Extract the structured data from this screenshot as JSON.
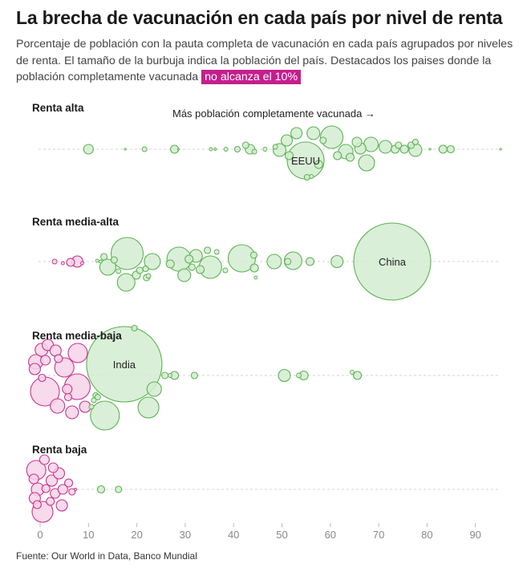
{
  "title": "La brecha de vacunación en cada país por nivel de renta",
  "subtitle": {
    "text": "Porcentaje de población con la pauta completa de vacunación en cada país agrupados por niveles de renta. El tamaño de la burbuja indica la población del país. Destacados los paises donde la población completamente vacunada",
    "highlight": "no alcanza el 10%"
  },
  "source": "Fuente: Our World in Data, Banco Mundial",
  "colors": {
    "green_fill": "#d4ecd1",
    "green_stroke": "#5cb352",
    "pink_fill": "#f6d3e8",
    "pink_stroke": "#c8348e",
    "baseline": "#d6d6d6"
  },
  "chart_data": {
    "type": "scatter",
    "subtype": "beeswarm-bubble",
    "xlabel": "",
    "ylabel": "",
    "xlim": [
      0,
      95
    ],
    "xticks": [
      0,
      10,
      20,
      30,
      40,
      50,
      60,
      70,
      80,
      90
    ],
    "threshold": 10,
    "annotation": "Más población completamente vacunada →",
    "groups": [
      {
        "name": "Renta alta",
        "points": [
          {
            "x": 10,
            "d": 0,
            "r": 6
          },
          {
            "x": 17.6,
            "d": 0,
            "r": 1.2
          },
          {
            "x": 21.6,
            "d": 0,
            "r": 3
          },
          {
            "x": 27.8,
            "d": 0,
            "r": 5
          },
          {
            "x": 28.6,
            "d": 0,
            "r": 1.2
          },
          {
            "x": 35.3,
            "d": 0,
            "r": 2
          },
          {
            "x": 36.2,
            "d": 0,
            "r": 1.5
          },
          {
            "x": 38.4,
            "d": 0,
            "r": 2.5
          },
          {
            "x": 40.8,
            "d": 0,
            "r": 3.5
          },
          {
            "x": 42.5,
            "d": -5,
            "r": 4
          },
          {
            "x": 43.4,
            "d": 0,
            "r": 6
          },
          {
            "x": 44.3,
            "d": 3,
            "r": 3
          },
          {
            "x": 46.5,
            "d": 0,
            "r": 2.5
          },
          {
            "x": 48.6,
            "d": -3,
            "r": 3
          },
          {
            "x": 49.5,
            "d": 1,
            "r": 8
          },
          {
            "x": 51,
            "d": -11,
            "r": 7
          },
          {
            "x": 51.5,
            "d": 8,
            "r": 5
          },
          {
            "x": 53,
            "d": -20,
            "r": 7
          },
          {
            "x": 54.9,
            "d": 14,
            "r": 23,
            "label": "EEUU"
          },
          {
            "x": 55.2,
            "d": 35,
            "r": 3.5
          },
          {
            "x": 56.1,
            "d": 34,
            "r": 2.5
          },
          {
            "x": 57.6,
            "d": 19,
            "r": 5
          },
          {
            "x": 56.5,
            "d": -20,
            "r": 8
          },
          {
            "x": 58.5,
            "d": -11,
            "r": 4
          },
          {
            "x": 60.3,
            "d": -15,
            "r": 14
          },
          {
            "x": 61.5,
            "d": 8,
            "r": 5
          },
          {
            "x": 63.2,
            "d": 3,
            "r": 9
          },
          {
            "x": 64.1,
            "d": 10,
            "r": 5
          },
          {
            "x": 65.5,
            "d": -9,
            "r": 6
          },
          {
            "x": 66.2,
            "d": -1,
            "r": 7
          },
          {
            "x": 67.5,
            "d": 17,
            "r": 10
          },
          {
            "x": 68.4,
            "d": -6,
            "r": 9
          },
          {
            "x": 71.4,
            "d": -3,
            "r": 8
          },
          {
            "x": 73.4,
            "d": 0,
            "r": 5
          },
          {
            "x": 74.1,
            "d": -5,
            "r": 4
          },
          {
            "x": 75.3,
            "d": 0,
            "r": 5
          },
          {
            "x": 76.7,
            "d": -5,
            "r": 4
          },
          {
            "x": 77.6,
            "d": 1,
            "r": 8
          },
          {
            "x": 77.6,
            "d": -9,
            "r": 3.5
          },
          {
            "x": 80.6,
            "d": 0,
            "r": 1.2
          },
          {
            "x": 83.3,
            "d": 0,
            "r": 5
          },
          {
            "x": 84.9,
            "d": 0,
            "r": 4.5
          },
          {
            "x": 95.2,
            "d": 0,
            "r": 1.2
          }
        ]
      },
      {
        "name": "Renta media-alta",
        "points": [
          {
            "x": 3,
            "d": 0,
            "r": 3
          },
          {
            "x": 4.7,
            "d": 2,
            "r": 2
          },
          {
            "x": 6.3,
            "d": 1,
            "r": 5
          },
          {
            "x": 7.7,
            "d": 0,
            "r": 7
          },
          {
            "x": 8.7,
            "d": 2,
            "r": 2
          },
          {
            "x": 11.8,
            "d": -1,
            "r": 2
          },
          {
            "x": 12.5,
            "d": 0,
            "r": 2
          },
          {
            "x": 13.2,
            "d": -6,
            "r": 4
          },
          {
            "x": 14,
            "d": 7,
            "r": 10
          },
          {
            "x": 15.3,
            "d": -2,
            "r": 4
          },
          {
            "x": 16.2,
            "d": 12,
            "r": 3
          },
          {
            "x": 18,
            "d": -10,
            "r": 20
          },
          {
            "x": 17.8,
            "d": 26,
            "r": 11
          },
          {
            "x": 19.9,
            "d": 17,
            "r": 5
          },
          {
            "x": 20.6,
            "d": 11,
            "r": 4
          },
          {
            "x": 21.8,
            "d": 9,
            "r": 3.5
          },
          {
            "x": 22,
            "d": 20,
            "r": 4
          },
          {
            "x": 22.4,
            "d": 18,
            "r": 3
          },
          {
            "x": 23.2,
            "d": 0,
            "r": 10
          },
          {
            "x": 26.9,
            "d": 3,
            "r": 5
          },
          {
            "x": 28.7,
            "d": -3,
            "r": 15
          },
          {
            "x": 29.8,
            "d": 17,
            "r": 8
          },
          {
            "x": 30.8,
            "d": -3,
            "r": 5
          },
          {
            "x": 31.4,
            "d": 7,
            "r": 4
          },
          {
            "x": 32.2,
            "d": -7,
            "r": 8
          },
          {
            "x": 33.1,
            "d": 10,
            "r": 5
          },
          {
            "x": 34.6,
            "d": -14,
            "r": 4
          },
          {
            "x": 35.2,
            "d": 7,
            "r": 14
          },
          {
            "x": 36.5,
            "d": -12,
            "r": 3
          },
          {
            "x": 38.3,
            "d": 11,
            "r": 3
          },
          {
            "x": 41.7,
            "d": -4,
            "r": 17
          },
          {
            "x": 44.3,
            "d": 8,
            "r": 5
          },
          {
            "x": 44.2,
            "d": -8,
            "r": 4
          },
          {
            "x": 44.6,
            "d": 20,
            "r": 2
          },
          {
            "x": 48.4,
            "d": 0,
            "r": 9
          },
          {
            "x": 51.2,
            "d": 0,
            "r": 4
          },
          {
            "x": 52.3,
            "d": -1,
            "r": 11
          },
          {
            "x": 55.8,
            "d": 0,
            "r": 5
          },
          {
            "x": 61.4,
            "d": 0,
            "r": 7.5
          },
          {
            "x": 72.8,
            "d": 0,
            "r": 48,
            "label": "China"
          }
        ]
      },
      {
        "name": "Renta media-baja",
        "points": [
          {
            "x": -1.1,
            "d": -8,
            "r": 7
          },
          {
            "x": -0.9,
            "d": -17,
            "r": 9
          },
          {
            "x": 0.3,
            "d": -32,
            "r": 8
          },
          {
            "x": 0.4,
            "d": 3,
            "r": 4.5
          },
          {
            "x": 1,
            "d": 20,
            "r": 18
          },
          {
            "x": 1.1,
            "d": -19,
            "r": 6
          },
          {
            "x": 1.6,
            "d": -38,
            "r": 7
          },
          {
            "x": 3.2,
            "d": -31,
            "r": 7
          },
          {
            "x": 3.6,
            "d": 38,
            "r": 9
          },
          {
            "x": 3.8,
            "d": -21,
            "r": 5
          },
          {
            "x": 5,
            "d": -10,
            "r": 12
          },
          {
            "x": 5.6,
            "d": 17,
            "r": 6
          },
          {
            "x": 5.8,
            "d": 27,
            "r": 4.5
          },
          {
            "x": 6.6,
            "d": 46,
            "r": 8
          },
          {
            "x": 7.8,
            "d": -28,
            "r": 12
          },
          {
            "x": 7.7,
            "d": 14,
            "r": 16
          },
          {
            "x": 9.3,
            "d": 39,
            "r": 7
          },
          {
            "x": 10.6,
            "d": 39,
            "r": 3
          },
          {
            "x": 11.1,
            "d": 31,
            "r": 3
          },
          {
            "x": 11.5,
            "d": 25,
            "r": 3.5
          },
          {
            "x": 11.9,
            "d": 27,
            "r": 3.5
          },
          {
            "x": 13.4,
            "d": 50,
            "r": 18
          },
          {
            "x": 17.4,
            "d": -14,
            "r": 47,
            "label": "India"
          },
          {
            "x": 19.5,
            "d": -59,
            "r": 3.5
          },
          {
            "x": 22.4,
            "d": 40,
            "r": 13
          },
          {
            "x": 23.6,
            "d": 17,
            "r": 9
          },
          {
            "x": 25.8,
            "d": 0,
            "r": 4
          },
          {
            "x": 26.9,
            "d": 0,
            "r": 2.5
          },
          {
            "x": 27.8,
            "d": 0,
            "r": 5
          },
          {
            "x": 31.9,
            "d": 0,
            "r": 4
          },
          {
            "x": 50.5,
            "d": 0,
            "r": 7.5
          },
          {
            "x": 53.5,
            "d": 0,
            "r": 3
          },
          {
            "x": 54.5,
            "d": 0,
            "r": 5.5
          },
          {
            "x": 64.5,
            "d": -4,
            "r": 2.5
          },
          {
            "x": 65.6,
            "d": 0,
            "r": 5
          }
        ]
      },
      {
        "name": "Renta baja",
        "points": [
          {
            "x": -1.3,
            "d": -13,
            "r": 6
          },
          {
            "x": -1.1,
            "d": 11,
            "r": 7
          },
          {
            "x": -0.8,
            "d": -24,
            "r": 12
          },
          {
            "x": -0.6,
            "d": 19,
            "r": 5
          },
          {
            "x": -0.5,
            "d": 0,
            "r": 8
          },
          {
            "x": 0.9,
            "d": -37,
            "r": 6
          },
          {
            "x": 0.5,
            "d": 28,
            "r": 13
          },
          {
            "x": 1.2,
            "d": -1,
            "r": 5
          },
          {
            "x": 2.1,
            "d": 15,
            "r": 5
          },
          {
            "x": 2.4,
            "d": -11,
            "r": 7
          },
          {
            "x": 2.7,
            "d": -27,
            "r": 6
          },
          {
            "x": 3.1,
            "d": 5,
            "r": 6
          },
          {
            "x": 3.9,
            "d": -20,
            "r": 7
          },
          {
            "x": 4.5,
            "d": 20,
            "r": 7
          },
          {
            "x": 4.7,
            "d": 0,
            "r": 6
          },
          {
            "x": 5.9,
            "d": -8,
            "r": 5
          },
          {
            "x": 6.6,
            "d": 3,
            "r": 4
          },
          {
            "x": 7.3,
            "d": 0,
            "r": 1.5
          },
          {
            "x": 12.6,
            "d": 0,
            "r": 4.5
          },
          {
            "x": 16.2,
            "d": 0,
            "r": 4
          }
        ]
      }
    ]
  }
}
